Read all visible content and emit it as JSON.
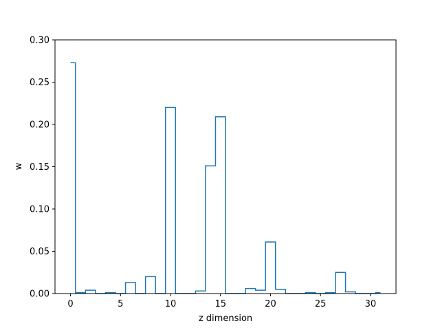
{
  "chart_data": {
    "type": "step",
    "xlabel": "z dimension",
    "ylabel": "w",
    "xlim": [
      -1.55,
      32.55
    ],
    "ylim": [
      0.0,
      0.3
    ],
    "x_ticks": [
      0,
      5,
      10,
      15,
      20,
      25,
      30
    ],
    "x_tick_labels": [
      "0",
      "5",
      "10",
      "15",
      "20",
      "25",
      "30"
    ],
    "y_ticks": [
      0.0,
      0.05,
      0.1,
      0.15,
      0.2,
      0.25,
      0.3
    ],
    "y_tick_labels": [
      "0.00",
      "0.05",
      "0.10",
      "0.15",
      "0.20",
      "0.25",
      "0.30"
    ],
    "grid": false,
    "series": [
      {
        "color": "#1f77b4",
        "x": [
          0,
          1,
          2,
          3,
          4,
          5,
          6,
          7,
          8,
          9,
          10,
          11,
          12,
          13,
          14,
          15,
          16,
          17,
          18,
          19,
          20,
          21,
          22,
          23,
          24,
          25,
          26,
          27,
          28,
          29,
          30,
          31
        ],
        "values": [
          0.273,
          0.001,
          0.004,
          0.0,
          0.001,
          0.0,
          0.013,
          0.0,
          0.02,
          0.0,
          0.22,
          0.0,
          0.0,
          0.003,
          0.151,
          0.209,
          0.0,
          0.0,
          0.006,
          0.004,
          0.061,
          0.005,
          0.0,
          0.0,
          0.001,
          0.0,
          0.001,
          0.025,
          0.002,
          0.0,
          0.0,
          0.001
        ]
      }
    ]
  }
}
